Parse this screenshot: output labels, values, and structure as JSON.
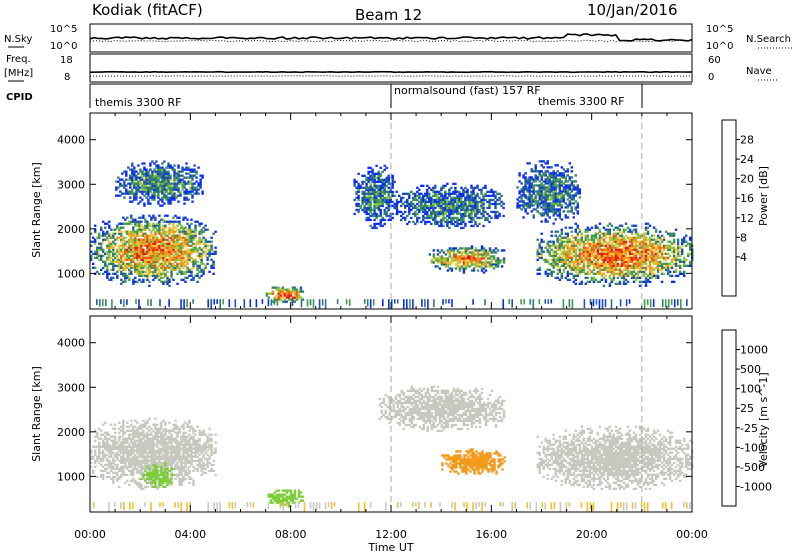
{
  "header": {
    "station": "Kodiak (fitACF)",
    "beam": "Beam 12",
    "date": "10/Jan/2016"
  },
  "top_panels": {
    "nsky_label": "N.Sky",
    "nsearch_label": "N.Search",
    "nsky_ticks": [
      "10^5",
      "10^0"
    ],
    "nsearch_ticks": [
      "10^5",
      "10^0"
    ],
    "freq_label_line1": "Freq.",
    "freq_label_line2": "[MHz]",
    "freq_ticks": [
      "18",
      "8"
    ],
    "nave_label": "Nave",
    "nave_ticks": [
      "60",
      "0"
    ],
    "cpid_label": "CPID",
    "cpid_segments": [
      {
        "label": "themis 3300 RF",
        "start_hour": 0.0
      },
      {
        "label": "normalsound (fast) 157 RF",
        "start_hour": 12.0
      },
      {
        "label": "themis 3300 RF",
        "start_hour": 22.0
      }
    ]
  },
  "chart_data": [
    {
      "type": "heatmap",
      "name": "power",
      "ylabel": "Slant Range [km]",
      "yticks": [
        "4000",
        "3000",
        "2000",
        "1000"
      ],
      "ylim": [
        200,
        4600
      ],
      "xlim": [
        0,
        24
      ],
      "colorbar_label": "Power [dB]",
      "colorbar_ticks": [
        "28",
        "24",
        "20",
        "16",
        "12",
        "8",
        "4"
      ],
      "colorbar_colors": [
        "#0a2bff",
        "#1f4fb8",
        "#2e7a70",
        "#3f9b50",
        "#8cc63c",
        "#f2c230",
        "#f39a1c",
        "#f05a14",
        "#e81a10"
      ],
      "blobs": [
        {
          "hour_start": 0.0,
          "hour_end": 5.0,
          "range_start": 700,
          "range_end": 2300,
          "level": 0.75
        },
        {
          "hour_start": 1.0,
          "hour_end": 4.5,
          "range_start": 2500,
          "range_end": 3500,
          "level": 0.35
        },
        {
          "hour_start": 7.0,
          "hour_end": 8.5,
          "range_start": 300,
          "range_end": 700,
          "level": 0.9
        },
        {
          "hour_start": 10.5,
          "hour_end": 12.2,
          "range_start": 2000,
          "range_end": 3400,
          "level": 0.3
        },
        {
          "hour_start": 12.2,
          "hour_end": 16.5,
          "range_start": 2000,
          "range_end": 3000,
          "level": 0.3
        },
        {
          "hour_start": 13.5,
          "hour_end": 16.5,
          "range_start": 1000,
          "range_end": 1600,
          "level": 0.75
        },
        {
          "hour_start": 17.8,
          "hour_end": 24.0,
          "range_start": 700,
          "range_end": 2100,
          "level": 0.8
        },
        {
          "hour_start": 17.0,
          "hour_end": 19.5,
          "range_start": 2100,
          "range_end": 3500,
          "level": 0.3
        }
      ]
    },
    {
      "type": "heatmap",
      "name": "velocity",
      "xlabel": "Time UT",
      "xticks": [
        "00:00",
        "04:00",
        "08:00",
        "12:00",
        "16:00",
        "20:00",
        "00:00"
      ],
      "ylabel": "Slant Range [km]",
      "yticks": [
        "4000",
        "3000",
        "2000",
        "1000"
      ],
      "ylim": [
        200,
        4600
      ],
      "xlim": [
        0,
        24
      ],
      "colorbar_label": "Velocity [m s^-1]",
      "colorbar_ticks": [
        "1000",
        "500",
        "100",
        "25",
        "-25",
        "-100",
        "-500",
        "-1000"
      ],
      "colorbar_colors": [
        "#1a3fb0",
        "#2e6e8a",
        "#3f9b50",
        "#7ccf3a",
        "#c8c8c0",
        "#f5c02a",
        "#f39a1c",
        "#f05a14",
        "#e81a10"
      ],
      "blobs": [
        {
          "hour_start": 0.0,
          "hour_end": 5.0,
          "range_start": 700,
          "range_end": 2300,
          "color": "#c8c8c0"
        },
        {
          "hour_start": 2.0,
          "hour_end": 3.3,
          "range_start": 700,
          "range_end": 1300,
          "color": "#7ccf3a"
        },
        {
          "hour_start": 7.0,
          "hour_end": 8.5,
          "range_start": 300,
          "range_end": 700,
          "color": "#7ccf3a"
        },
        {
          "hour_start": 11.5,
          "hour_end": 16.5,
          "range_start": 2000,
          "range_end": 3000,
          "color": "#c8c8c0"
        },
        {
          "hour_start": 14.0,
          "hour_end": 16.5,
          "range_start": 1000,
          "range_end": 1600,
          "color": "#f39a1c"
        },
        {
          "hour_start": 17.8,
          "hour_end": 24.0,
          "range_start": 700,
          "range_end": 2100,
          "color": "#c8c8c0"
        }
      ]
    }
  ]
}
